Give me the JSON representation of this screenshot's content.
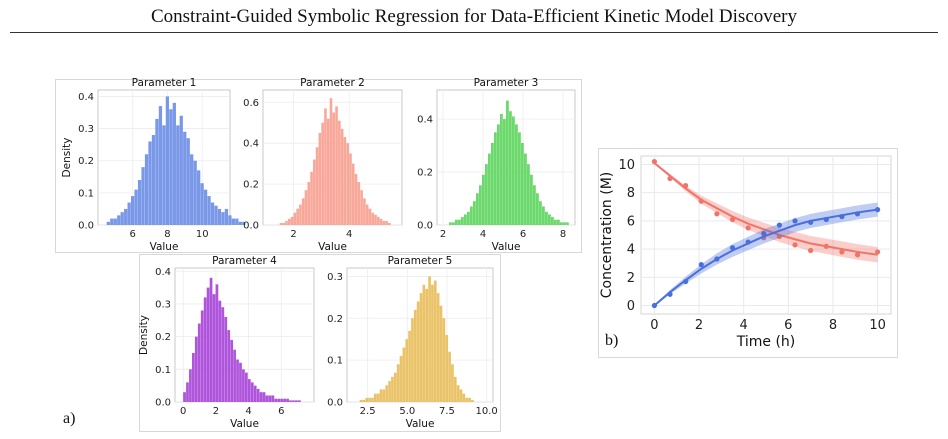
{
  "paper": {
    "running_title": "Constraint-Guided Symbolic Regression for Data-Efficient Kinetic Model Discovery",
    "panel_a_label": "a)",
    "panel_b_label": "b)"
  },
  "chart_data": [
    {
      "type": "bar",
      "title": "Parameter 1",
      "xlabel": "Value",
      "ylabel": "Density",
      "color": "#6f8fe6",
      "xlim": [
        4.0,
        11.6
      ],
      "ylim": [
        0,
        0.42
      ],
      "xticks": [
        "6",
        "8",
        "10"
      ],
      "xtick_values": [
        6,
        8,
        10
      ],
      "yticks": [
        "0.0",
        "0.1",
        "0.2",
        "0.3",
        "0.4"
      ],
      "ytick_values": [
        0,
        0.1,
        0.2,
        0.3,
        0.4
      ],
      "bin_start": 4.5,
      "bin_width": 0.2,
      "values": [
        0.01,
        0.02,
        0.02,
        0.03,
        0.04,
        0.05,
        0.07,
        0.09,
        0.11,
        0.14,
        0.18,
        0.22,
        0.26,
        0.28,
        0.33,
        0.37,
        0.31,
        0.4,
        0.36,
        0.38,
        0.31,
        0.34,
        0.29,
        0.27,
        0.22,
        0.2,
        0.17,
        0.13,
        0.11,
        0.09,
        0.07,
        0.06,
        0.05,
        0.04,
        0.05,
        0.03,
        0.02,
        0.02,
        0.01,
        0.01
      ]
    },
    {
      "type": "bar",
      "title": "Parameter 2",
      "xlabel": "Value",
      "ylabel": "",
      "color": "#f7a090",
      "xlim": [
        0.9,
        5.9
      ],
      "ylim": [
        0,
        0.66
      ],
      "xticks": [
        "2",
        "4"
      ],
      "xtick_values": [
        2,
        4
      ],
      "yticks": [
        "0.0",
        "0.2",
        "0.4",
        "0.6"
      ],
      "ytick_values": [
        0,
        0.2,
        0.4,
        0.6
      ],
      "bin_start": 1.5,
      "bin_width": 0.1,
      "values": [
        0.01,
        0.01,
        0.02,
        0.03,
        0.04,
        0.06,
        0.08,
        0.1,
        0.13,
        0.17,
        0.21,
        0.26,
        0.32,
        0.38,
        0.45,
        0.5,
        0.57,
        0.52,
        0.62,
        0.55,
        0.58,
        0.51,
        0.47,
        0.43,
        0.4,
        0.35,
        0.3,
        0.25,
        0.21,
        0.17,
        0.13,
        0.1,
        0.08,
        0.06,
        0.05,
        0.04,
        0.03,
        0.02,
        0.02,
        0.01
      ]
    },
    {
      "type": "bar",
      "title": "Parameter 3",
      "xlabel": "Value",
      "ylabel": "",
      "color": "#5fd65f",
      "xlim": [
        1.7,
        8.6
      ],
      "ylim": [
        0,
        0.51
      ],
      "xticks": [
        "2",
        "4",
        "6",
        "8"
      ],
      "xtick_values": [
        2,
        4,
        6,
        8
      ],
      "yticks": [
        "0.0",
        "0.2",
        "0.4"
      ],
      "ytick_values": [
        0,
        0.2,
        0.4
      ],
      "bin_start": 2.3,
      "bin_width": 0.15,
      "values": [
        0.01,
        0.01,
        0.02,
        0.02,
        0.03,
        0.04,
        0.05,
        0.07,
        0.09,
        0.12,
        0.15,
        0.19,
        0.23,
        0.27,
        0.31,
        0.35,
        0.38,
        0.42,
        0.4,
        0.47,
        0.43,
        0.41,
        0.38,
        0.35,
        0.31,
        0.27,
        0.23,
        0.19,
        0.15,
        0.12,
        0.09,
        0.07,
        0.05,
        0.04,
        0.03,
        0.02,
        0.02,
        0.01,
        0.01,
        0.01
      ]
    },
    {
      "type": "bar",
      "title": "Parameter 4",
      "xlabel": "Value",
      "ylabel": "Density",
      "color": "#a846d8",
      "xlim": [
        -0.5,
        8.0
      ],
      "ylim": [
        0,
        0.41
      ],
      "xticks": [
        "0",
        "2",
        "4",
        "6"
      ],
      "xtick_values": [
        0,
        2,
        4,
        6
      ],
      "yticks": [
        "0.0",
        "0.1",
        "0.2",
        "0.3",
        "0.4"
      ],
      "ytick_values": [
        0,
        0.1,
        0.2,
        0.3,
        0.4
      ],
      "bin_start": 0.0,
      "bin_width": 0.18,
      "values": [
        0.03,
        0.06,
        0.1,
        0.15,
        0.2,
        0.24,
        0.28,
        0.32,
        0.35,
        0.38,
        0.33,
        0.36,
        0.31,
        0.29,
        0.26,
        0.22,
        0.19,
        0.16,
        0.13,
        0.12,
        0.1,
        0.09,
        0.07,
        0.06,
        0.05,
        0.04,
        0.03,
        0.03,
        0.02,
        0.02,
        0.02,
        0.01,
        0.01,
        0.01,
        0.01,
        0.01,
        0.005,
        0.005,
        0.005,
        0.005
      ]
    },
    {
      "type": "bar",
      "title": "Parameter 5",
      "xlabel": "Value",
      "ylabel": "",
      "color": "#e8bd5a",
      "xlim": [
        1.2,
        10.4
      ],
      "ylim": [
        0,
        0.32
      ],
      "xticks": [
        "2.5",
        "5.0",
        "7.5",
        "10.0"
      ],
      "xtick_values": [
        2.5,
        5.0,
        7.5,
        10.0
      ],
      "yticks": [
        "0.0",
        "0.1",
        "0.2",
        "0.3"
      ],
      "ytick_values": [
        0,
        0.1,
        0.2,
        0.3
      ],
      "bin_start": 2.0,
      "bin_width": 0.18,
      "values": [
        0.005,
        0.005,
        0.01,
        0.01,
        0.01,
        0.02,
        0.02,
        0.03,
        0.03,
        0.04,
        0.05,
        0.06,
        0.07,
        0.09,
        0.11,
        0.13,
        0.15,
        0.17,
        0.2,
        0.22,
        0.24,
        0.26,
        0.28,
        0.27,
        0.3,
        0.28,
        0.29,
        0.26,
        0.23,
        0.2,
        0.16,
        0.12,
        0.09,
        0.06,
        0.04,
        0.03,
        0.02,
        0.01,
        0.01,
        0.005
      ]
    },
    {
      "type": "line",
      "title": "",
      "xlabel": "Time (h)",
      "ylabel": "Concentration (M)",
      "xlim": [
        -0.6,
        10.6
      ],
      "ylim": [
        -0.6,
        10.6
      ],
      "xticks": [
        "0",
        "2",
        "4",
        "6",
        "8",
        "10"
      ],
      "xtick_values": [
        0,
        2,
        4,
        6,
        8,
        10
      ],
      "yticks": [
        "0",
        "2",
        "4",
        "6",
        "8",
        "10"
      ],
      "ytick_values": [
        0,
        2,
        4,
        6,
        8,
        10
      ],
      "grid": true,
      "x": [
        0,
        0.7,
        1.4,
        2.1,
        2.8,
        3.5,
        4.2,
        4.9,
        5.6,
        6.3,
        7.0,
        7.7,
        8.4,
        9.1,
        10
      ],
      "series": [
        {
          "color": "#f07468",
          "band_halfwidth": [
            0.05,
            0.12,
            0.2,
            0.28,
            0.34,
            0.4,
            0.44,
            0.47,
            0.5,
            0.52,
            0.53,
            0.54,
            0.55,
            0.55,
            0.55
          ],
          "fit": [
            10.1,
            9.2,
            8.3,
            7.5,
            6.9,
            6.3,
            5.8,
            5.4,
            5.0,
            4.7,
            4.4,
            4.2,
            4.0,
            3.8,
            3.6
          ],
          "points": [
            10.2,
            9.0,
            8.5,
            7.4,
            6.5,
            6.1,
            5.5,
            4.8,
            4.9,
            4.3,
            3.9,
            4.2,
            3.8,
            3.6,
            3.8
          ]
        },
        {
          "color": "#4a6fdc",
          "band_halfwidth": [
            0.05,
            0.15,
            0.25,
            0.33,
            0.4,
            0.45,
            0.48,
            0.5,
            0.5,
            0.5,
            0.5,
            0.5,
            0.5,
            0.5,
            0.5
          ],
          "fit": [
            0.0,
            0.95,
            1.8,
            2.6,
            3.3,
            3.9,
            4.4,
            4.9,
            5.3,
            5.7,
            6.0,
            6.2,
            6.4,
            6.6,
            6.8
          ],
          "points": [
            0.0,
            0.8,
            1.7,
            2.9,
            3.3,
            4.1,
            4.5,
            5.1,
            5.7,
            6.0,
            5.9,
            6.1,
            6.3,
            6.5,
            6.8
          ]
        }
      ]
    }
  ]
}
